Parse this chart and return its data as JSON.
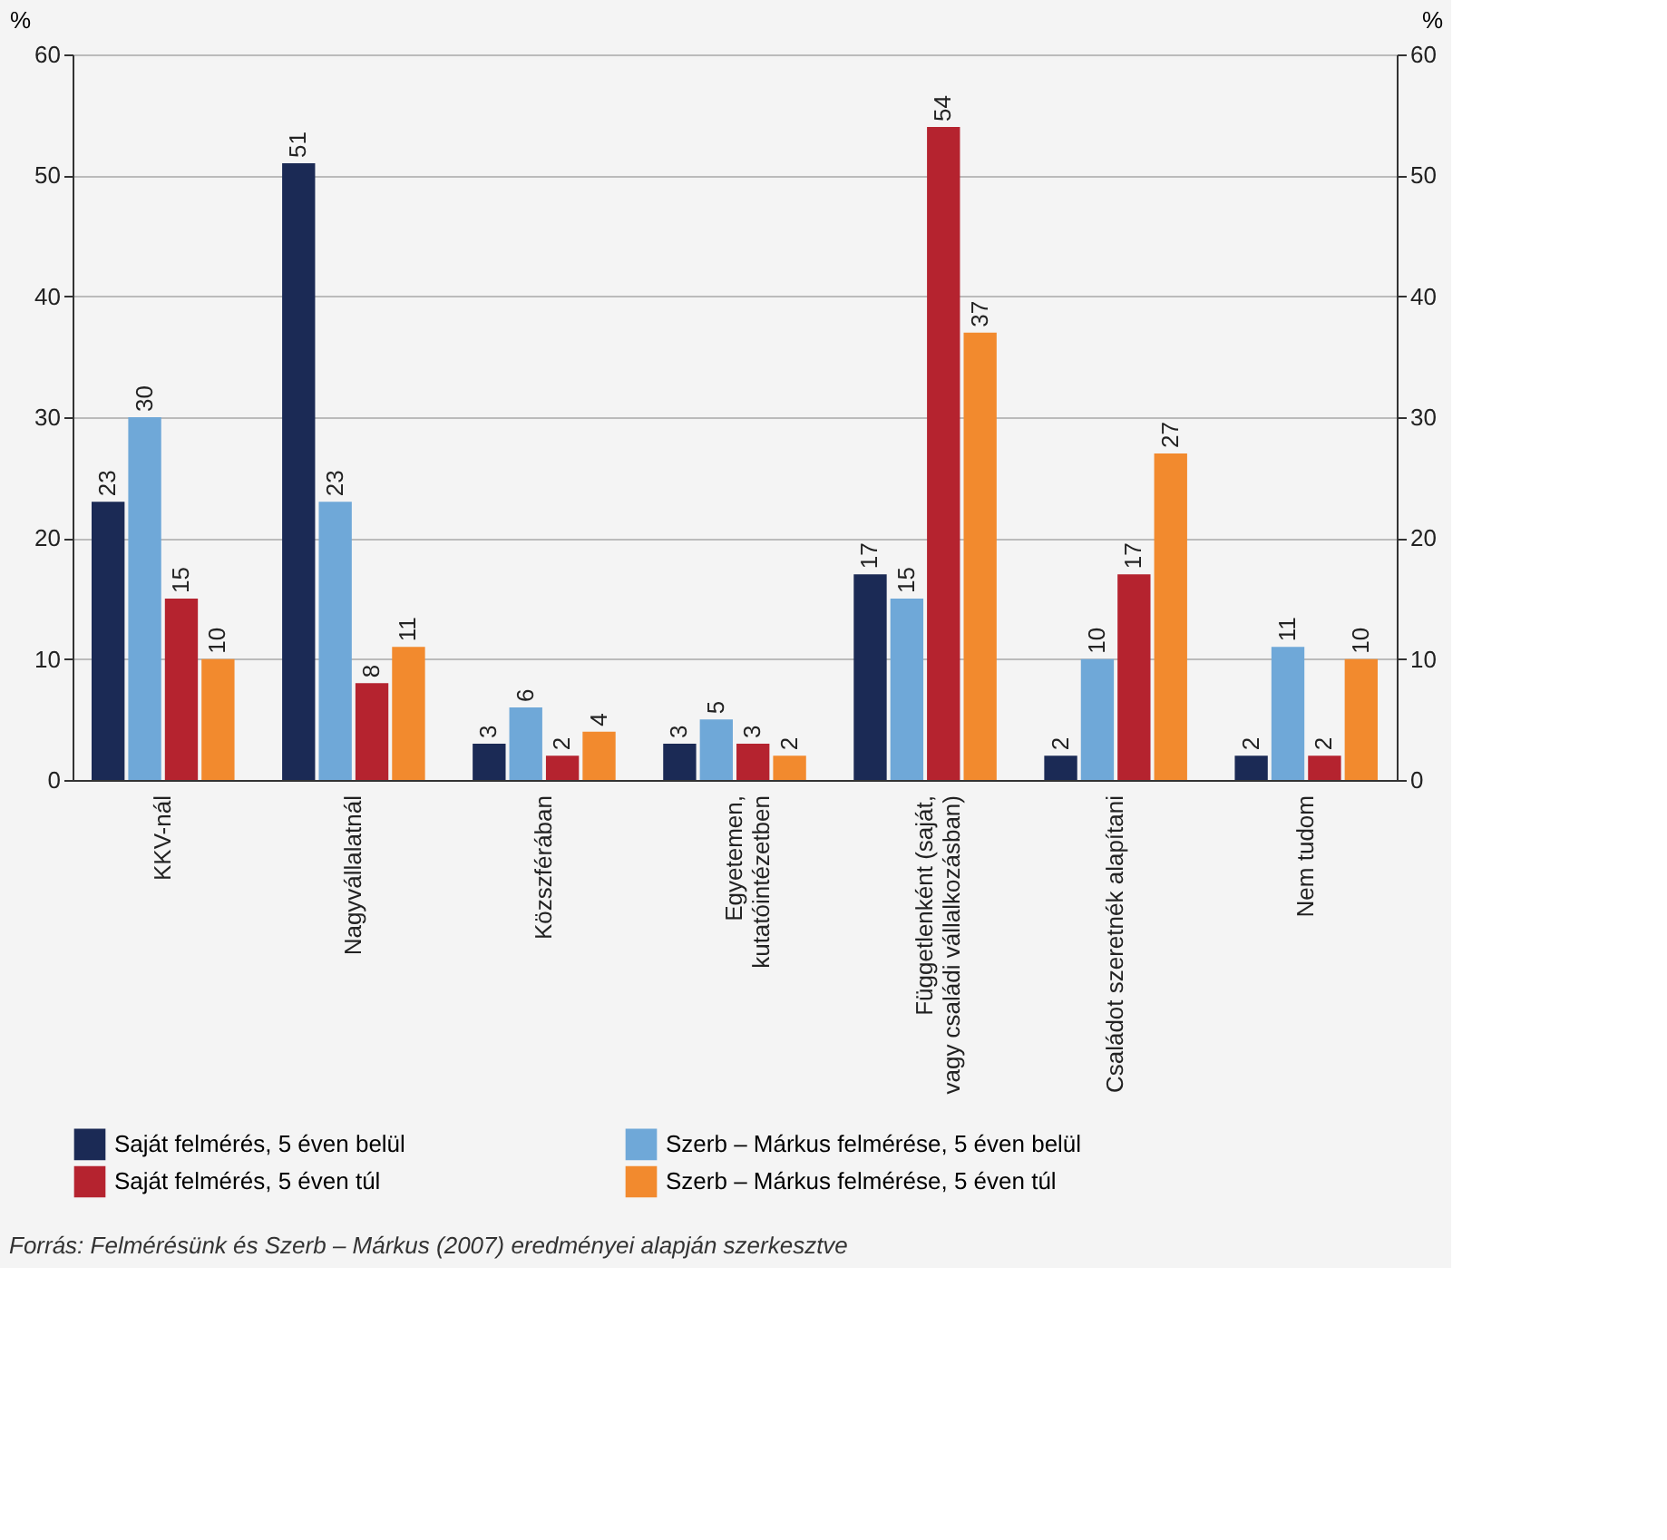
{
  "chart_data": {
    "type": "bar",
    "ylabel": "%",
    "y2label": "%",
    "categories": [
      "KKV-nál",
      "Nagyvállalatnál",
      "Közszférában",
      "Egyetemen,\nkutatóintézetben",
      "Függetlenként (saját,\nvagy családi vállalkozásban)",
      "Családot szeretnék alapítani",
      "Nem tudom"
    ],
    "series": [
      {
        "name": "Saját felmérés, 5 éven belül",
        "color": "#1b2a55",
        "values": [
          23,
          51,
          3,
          3,
          17,
          2,
          2
        ]
      },
      {
        "name": "Szerb – Márkus felmérése, 5 éven belül",
        "color": "#6fa8d8",
        "values": [
          30,
          23,
          6,
          5,
          15,
          10,
          11
        ]
      },
      {
        "name": "Saját felmérés, 5 éven túl",
        "color": "#b5232f",
        "values": [
          15,
          8,
          2,
          3,
          54,
          17,
          2
        ]
      },
      {
        "name": "Szerb – Márkus felmérése, 5 éven túl",
        "color": "#f28a2e",
        "values": [
          10,
          11,
          4,
          2,
          37,
          27,
          10
        ]
      }
    ],
    "ylim": [
      0,
      60
    ],
    "yticks": [
      0,
      10,
      20,
      30,
      40,
      50,
      60
    ],
    "y2lim": [
      0,
      60
    ],
    "y2ticks": [
      0,
      10,
      20,
      30,
      40,
      50,
      60
    ],
    "grid": "y",
    "legend": "bottom",
    "data_labels": true,
    "annotations": [
      "Forrás: Felmérésünk és Szerb – Márkus (2007) eredményei alapján szerkesztve"
    ]
  }
}
